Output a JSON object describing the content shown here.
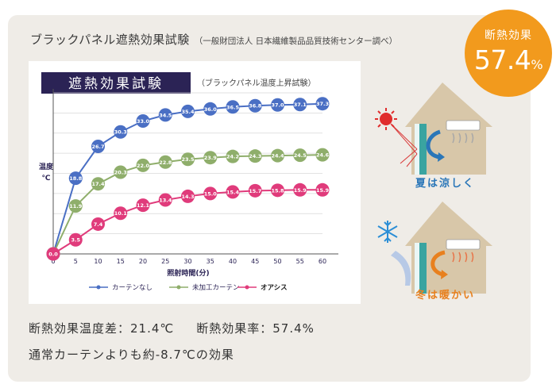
{
  "header": {
    "title": "ブラックパネル遮熱効果試験",
    "source": "（一般財団法人 日本繊維製品品質技術センター調べ）"
  },
  "badge": {
    "label": "断熱効果",
    "value": "57.4",
    "unit": "%"
  },
  "colors": {
    "blue": "#4a6fc4",
    "green": "#8fae6b",
    "pink": "#e03b7b",
    "orange": "#f29a1d",
    "navy": "#2b2355"
  },
  "chart_data": {
    "type": "line",
    "title": "遮熱効果試験",
    "subtitle": "（ブラックパネル温度上昇試験）",
    "xlabel": "照射時間(分)",
    "ylabel": "温度 ℃",
    "x": [
      0,
      5,
      10,
      15,
      20,
      25,
      30,
      35,
      40,
      45,
      50,
      55,
      60
    ],
    "x_tick_labels": [
      "0",
      "5",
      "10",
      "15",
      "20",
      "25",
      "30",
      "35",
      "40",
      "45",
      "50",
      "55",
      "60"
    ],
    "ylim": [
      0,
      40
    ],
    "grid": true,
    "legend_position": "bottom",
    "series": [
      {
        "name": "カーテンなし",
        "color": "#4a6fc4",
        "values": [
          0.0,
          18.8,
          26.7,
          30.3,
          33.0,
          34.5,
          35.4,
          36.0,
          36.5,
          36.8,
          37.0,
          37.1,
          37.3
        ],
        "labels": [
          "",
          "18.8",
          "26.7",
          "30.3",
          "33.0",
          "34.5",
          "35.4",
          "36.0",
          "36.5",
          "36.8",
          "37.0",
          "37.1",
          "37.3"
        ]
      },
      {
        "name": "未加工カーテン",
        "color": "#8fae6b",
        "values": [
          0.0,
          11.9,
          17.4,
          20.3,
          22.0,
          22.8,
          23.5,
          23.9,
          24.2,
          24.3,
          24.4,
          24.5,
          24.6
        ],
        "labels": [
          "",
          "11.9",
          "17.4",
          "20.3",
          "22.0",
          "22.8",
          "23.5",
          "23.9",
          "24.2",
          "24.3",
          "24.4",
          "24.5",
          "24.6"
        ]
      },
      {
        "name": "オアシス",
        "color": "#e03b7b",
        "values": [
          0.0,
          3.5,
          7.4,
          10.1,
          12.1,
          13.4,
          14.3,
          15.0,
          15.4,
          15.7,
          15.8,
          15.9,
          15.9
        ],
        "labels": [
          "0.0",
          "3.5",
          "7.4",
          "10.1",
          "12.1",
          "13.4",
          "14.3",
          "15.0",
          "15.4",
          "15.7",
          "15.8",
          "15.9",
          "15.9"
        ]
      }
    ]
  },
  "illustration": {
    "summer_label": "夏は涼しく",
    "winter_label": "冬は暖かい",
    "summer_icon": "sun-icon",
    "winter_icon": "snowflake-icon"
  },
  "summary": {
    "temp_diff": "断熱効果温度差：21.4℃",
    "rate": "断熱効果率：57.4%",
    "note": "通常カーテンよりも約-8.7℃の効果"
  }
}
